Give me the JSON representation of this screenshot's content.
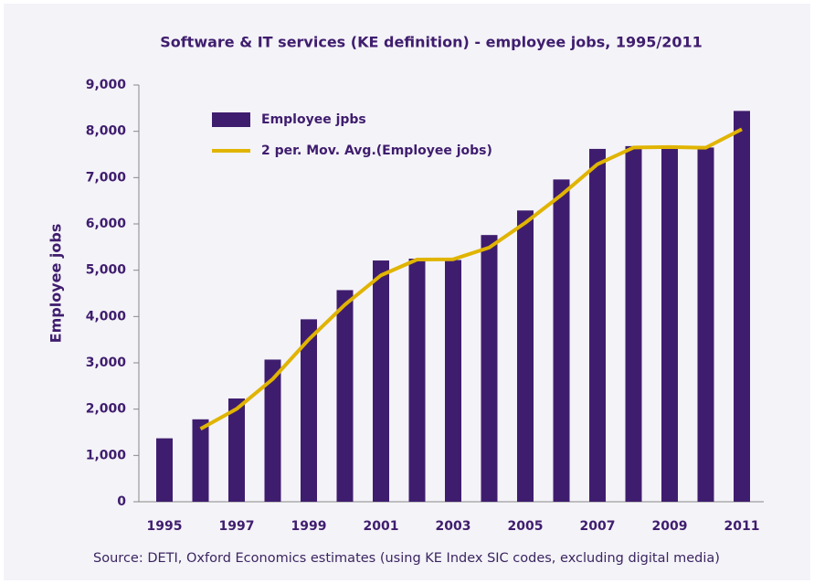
{
  "chart_data": {
    "type": "bar",
    "title": "Software & IT services (KE definition) - employee jobs, 1995/2011",
    "y_label": "Employee jobs",
    "source": "Source: DETI, Oxford Economics estimates (using KE Index SIC codes, excluding digital media)",
    "categories": [
      "1995",
      null,
      "1997",
      null,
      "1999",
      null,
      "2001",
      null,
      "2003",
      null,
      "2005",
      null,
      "2007",
      null,
      "2009",
      null,
      "2011"
    ],
    "series": [
      {
        "name": "Employee jpbs",
        "type": "bar",
        "color": "#3f1d6e",
        "values": [
          1370,
          1780,
          2230,
          3070,
          3940,
          4570,
          5210,
          5250,
          5220,
          5760,
          6290,
          6960,
          7620,
          7680,
          7640,
          7650,
          8440
        ]
      },
      {
        "name": "2 per. Mov. Avg.(Employee jobs)",
        "type": "line",
        "color": "#e0b400",
        "values": [
          null,
          1575,
          2005,
          2650,
          3505,
          4255,
          4890,
          5230,
          5235,
          5490,
          6025,
          6625,
          7290,
          7650,
          7660,
          7645,
          8045
        ]
      }
    ],
    "ylim": [
      0,
      9000
    ],
    "yticks": [
      0,
      {
        "value": 1000,
        "label": "1,000"
      },
      {
        "value": 2000,
        "label": "2,000"
      },
      {
        "value": 3000,
        "label": "3,000"
      },
      {
        "value": 4000,
        "label": "4,000"
      },
      {
        "value": 5000,
        "label": "5,000"
      },
      {
        "value": 6000,
        "label": "6,000"
      },
      {
        "value": 7000,
        "label": "7,000"
      },
      {
        "value": 8000,
        "label": "8,000"
      },
      {
        "value": 9000,
        "label": "9,000"
      }
    ],
    "legend": "top-left"
  }
}
